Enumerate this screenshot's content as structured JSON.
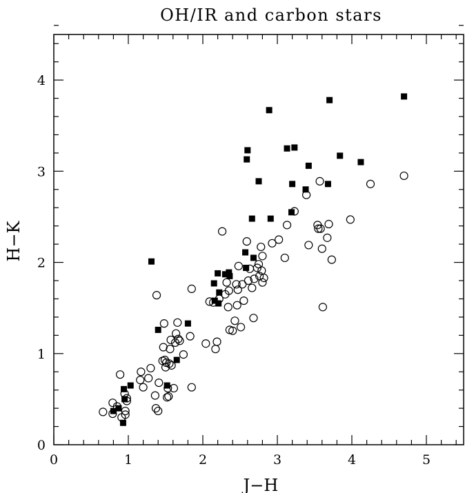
{
  "chart_data": {
    "type": "scatter",
    "title": "OH/IR and carbon stars",
    "xlabel": "J−H",
    "ylabel": "H−K",
    "xlim": [
      0,
      5.5
    ],
    "ylim": [
      0,
      4.5
    ],
    "x_ticks": [
      {
        "value": 0,
        "label": "0"
      },
      {
        "value": 1,
        "label": "1"
      },
      {
        "value": 2,
        "label": "2"
      },
      {
        "value": 3,
        "label": "3"
      },
      {
        "value": 4,
        "label": "4"
      },
      {
        "value": 5,
        "label": "5"
      }
    ],
    "y_ticks": [
      {
        "value": 0,
        "label": "0"
      },
      {
        "value": 1,
        "label": "1"
      },
      {
        "value": 2,
        "label": "2"
      },
      {
        "value": 3,
        "label": "3"
      },
      {
        "value": 4,
        "label": "4"
      }
    ],
    "grid": false,
    "colors": {
      "ink": "#000000",
      "background": "#ffffff"
    },
    "series": [
      {
        "marker": "open-circle",
        "points": [
          [
            0.66,
            0.36
          ],
          [
            0.79,
            0.34
          ],
          [
            0.79,
            0.46
          ],
          [
            0.85,
            0.42
          ],
          [
            0.89,
            0.77
          ],
          [
            0.91,
            0.3
          ],
          [
            0.95,
            0.56
          ],
          [
            0.96,
            0.37
          ],
          [
            0.96,
            0.33
          ],
          [
            0.98,
            0.48
          ],
          [
            0.98,
            0.51
          ],
          [
            1.16,
            0.71
          ],
          [
            1.17,
            0.8
          ],
          [
            1.2,
            0.63
          ],
          [
            1.27,
            0.73
          ],
          [
            1.3,
            0.84
          ],
          [
            1.36,
            0.54
          ],
          [
            1.37,
            0.4
          ],
          [
            1.4,
            0.37
          ],
          [
            1.41,
            0.68
          ],
          [
            1.38,
            1.64
          ],
          [
            1.46,
            0.92
          ],
          [
            1.47,
            1.07
          ],
          [
            1.48,
            1.33
          ],
          [
            1.49,
            0.93
          ],
          [
            1.5,
            0.85
          ],
          [
            1.51,
            0.9
          ],
          [
            1.52,
            0.52
          ],
          [
            1.53,
            0.62
          ],
          [
            1.54,
            0.53
          ],
          [
            1.55,
            0.89
          ],
          [
            1.56,
            1.05
          ],
          [
            1.57,
            1.15
          ],
          [
            1.58,
            0.87
          ],
          [
            1.61,
            0.62
          ],
          [
            1.63,
            1.12
          ],
          [
            1.64,
            1.22
          ],
          [
            1.66,
            1.34
          ],
          [
            1.67,
            1.16
          ],
          [
            1.69,
            1.14
          ],
          [
            1.74,
            0.99
          ],
          [
            1.83,
            1.19
          ],
          [
            1.85,
            1.71
          ],
          [
            1.85,
            0.63
          ],
          [
            2.04,
            1.11
          ],
          [
            2.09,
            1.57
          ],
          [
            2.14,
            1.56
          ],
          [
            2.17,
            1.05
          ],
          [
            2.19,
            1.13
          ],
          [
            2.22,
            1.6
          ],
          [
            2.26,
            2.34
          ],
          [
            2.3,
            1.65
          ],
          [
            2.32,
            1.78
          ],
          [
            2.34,
            1.51
          ],
          [
            2.35,
            1.69
          ],
          [
            2.36,
            1.26
          ],
          [
            2.4,
            1.25
          ],
          [
            2.43,
            1.36
          ],
          [
            2.45,
            1.76
          ],
          [
            2.46,
            1.53
          ],
          [
            2.47,
            1.7
          ],
          [
            2.48,
            1.96
          ],
          [
            2.51,
            1.29
          ],
          [
            2.53,
            1.76
          ],
          [
            2.55,
            1.58
          ],
          [
            2.59,
            2.23
          ],
          [
            2.61,
            1.8
          ],
          [
            2.63,
            1.93
          ],
          [
            2.66,
            1.72
          ],
          [
            2.68,
            1.39
          ],
          [
            2.69,
            1.82
          ],
          [
            2.73,
            1.94
          ],
          [
            2.75,
            1.98
          ],
          [
            2.76,
            1.85
          ],
          [
            2.78,
            2.17
          ],
          [
            2.79,
            1.91
          ],
          [
            2.8,
            2.07
          ],
          [
            2.8,
            1.78
          ],
          [
            2.82,
            1.83
          ],
          [
            2.93,
            2.21
          ],
          [
            3.02,
            2.25
          ],
          [
            3.1,
            2.05
          ],
          [
            3.13,
            2.41
          ],
          [
            3.23,
            2.56
          ],
          [
            3.39,
            2.74
          ],
          [
            3.42,
            2.19
          ],
          [
            3.54,
            2.41
          ],
          [
            3.55,
            2.37
          ],
          [
            3.57,
            2.89
          ],
          [
            3.58,
            2.37
          ],
          [
            3.6,
            2.15
          ],
          [
            3.61,
            1.51
          ],
          [
            3.67,
            2.27
          ],
          [
            3.69,
            2.42
          ],
          [
            3.73,
            2.03
          ],
          [
            3.98,
            2.47
          ],
          [
            4.25,
            2.86
          ],
          [
            4.7,
            2.95
          ]
        ]
      },
      {
        "marker": "filled-square",
        "points": [
          [
            0.8,
            0.37
          ],
          [
            0.87,
            0.4
          ],
          [
            0.93,
            0.24
          ],
          [
            0.94,
            0.61
          ],
          [
            0.95,
            0.5
          ],
          [
            1.03,
            0.65
          ],
          [
            1.31,
            2.01
          ],
          [
            1.4,
            1.26
          ],
          [
            1.52,
            0.65
          ],
          [
            1.65,
            0.93
          ],
          [
            1.8,
            1.33
          ],
          [
            2.15,
            1.77
          ],
          [
            2.16,
            1.58
          ],
          [
            2.2,
            1.88
          ],
          [
            2.21,
            1.55
          ],
          [
            2.22,
            1.67
          ],
          [
            2.3,
            1.87
          ],
          [
            2.35,
            1.89
          ],
          [
            2.36,
            1.85
          ],
          [
            2.57,
            2.11
          ],
          [
            2.58,
            1.94
          ],
          [
            2.59,
            3.13
          ],
          [
            2.6,
            3.23
          ],
          [
            2.66,
            2.48
          ],
          [
            2.68,
            2.05
          ],
          [
            2.75,
            2.89
          ],
          [
            2.89,
            3.67
          ],
          [
            2.91,
            2.48
          ],
          [
            3.13,
            3.25
          ],
          [
            3.19,
            2.55
          ],
          [
            3.2,
            2.86
          ],
          [
            3.23,
            3.26
          ],
          [
            3.38,
            2.8
          ],
          [
            3.42,
            3.06
          ],
          [
            3.68,
            2.86
          ],
          [
            3.7,
            3.78
          ],
          [
            3.84,
            3.17
          ],
          [
            4.12,
            3.1
          ],
          [
            4.7,
            3.82
          ]
        ]
      }
    ]
  }
}
